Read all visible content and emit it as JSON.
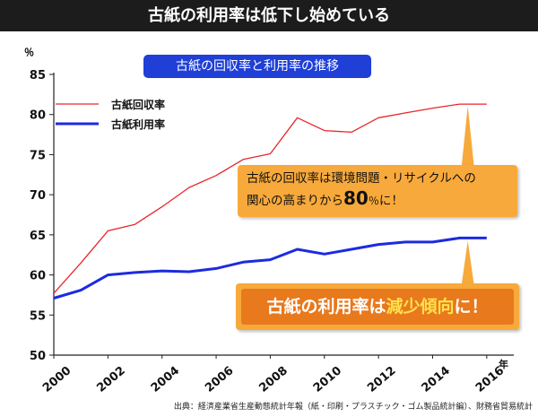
{
  "header": {
    "title": "古紙の利用率は低下し始めている"
  },
  "chart_data": {
    "type": "line",
    "title": "古紙の回収率と利用率の推移",
    "ylabel": "％",
    "xlabel": "年",
    "ylim": [
      50,
      85
    ],
    "yticks": [
      "50",
      "55",
      "60",
      "65",
      "70",
      "75",
      "80",
      "85"
    ],
    "xlim": [
      2000,
      2017
    ],
    "xticks": [
      "2000",
      "2002",
      "2004",
      "2006",
      "2008",
      "2010",
      "2012",
      "2014",
      "2016"
    ],
    "legend": "top-left",
    "series": [
      {
        "name": "古紙回収率",
        "color": "#e8262a",
        "x": [
          2000,
          2001,
          2002,
          2003,
          2004,
          2005,
          2006,
          2007,
          2008,
          2009,
          2010,
          2011,
          2012,
          2013,
          2014,
          2015,
          2016
        ],
        "y": [
          57.7,
          61.5,
          65.5,
          66.3,
          68.5,
          70.9,
          72.4,
          74.4,
          75.1,
          79.6,
          78.0,
          77.8,
          79.6,
          80.2,
          80.8,
          81.3,
          81.3
        ]
      },
      {
        "name": "古紙利用率",
        "color": "#1c2be0",
        "x": [
          2000,
          2001,
          2002,
          2003,
          2004,
          2005,
          2006,
          2007,
          2008,
          2009,
          2010,
          2011,
          2012,
          2013,
          2014,
          2015,
          2016
        ],
        "y": [
          57.1,
          58.1,
          60.0,
          60.3,
          60.5,
          60.4,
          60.8,
          61.6,
          61.9,
          63.2,
          62.6,
          63.2,
          63.8,
          64.1,
          64.1,
          64.6,
          64.6
        ]
      }
    ]
  },
  "callouts": {
    "recovery": {
      "line1": "古紙の回収率は環境問題・リサイクルへの",
      "line2_pre": "関心の高まりから",
      "line2_value": "80",
      "line2_unit": "％",
      "line2_post": "に！"
    },
    "usage": {
      "pre": "古紙の利用率は",
      "highlight": "減少傾向",
      "post": "に！"
    }
  },
  "source": "出典：経済産業省生産動態統計年報（紙・印刷・プラスチック・ゴム製品統計編）、財務省貿易統計",
  "colors": {
    "callout": "#f7a93b",
    "callout_inner": "#e8791c",
    "header_bg": "#1c1c1c",
    "subtitle_bg": "#1f3fd6"
  }
}
